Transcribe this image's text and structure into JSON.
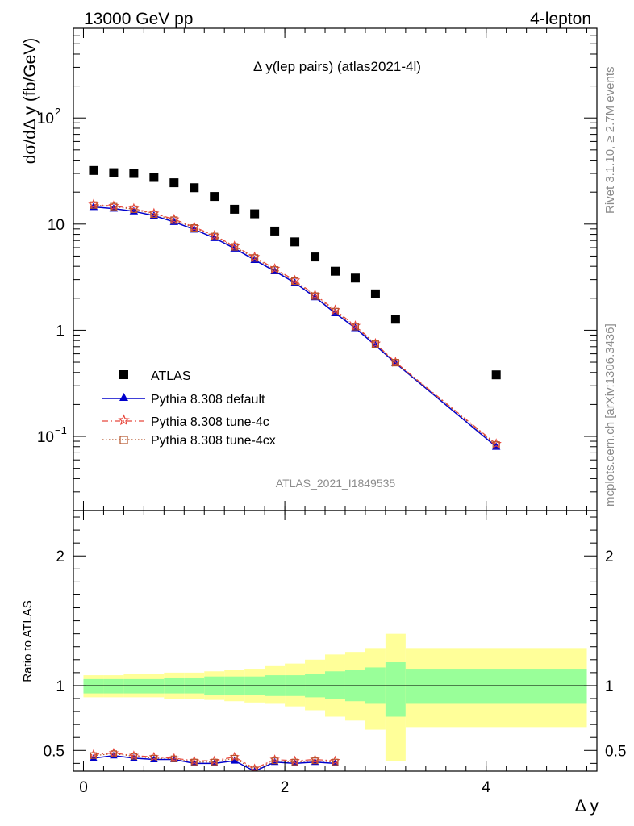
{
  "header": {
    "left": "13000 GeV pp",
    "right": "4-lepton"
  },
  "plot_title": "Δ y(lep pairs) (atlas2021-4l)",
  "ylabel_main": "dσ/dΔ y (fb/GeV)",
  "ylabel_ratio": "Ratio to ATLAS",
  "xlabel": "Δ y",
  "watermark": "ATLAS_2021_I1849535",
  "side_text_top": "Rivet 3.1.10, ≥ 2.7M events",
  "side_text_bottom": "mcplots.cern.ch [arXiv:1306.3436]",
  "colors": {
    "atlas": "#000000",
    "default": "#0000cc",
    "tune4c": "#e8473c",
    "tune4cx": "#b5532a",
    "band_inner": "#99ff99",
    "band_outer": "#ffff99"
  },
  "chart_data": [
    {
      "type": "scatter",
      "panel": "main",
      "yscale": "log",
      "xlim": [
        -0.1,
        5.1
      ],
      "ylim": [
        0.02,
        700
      ],
      "y_ticks": [
        {
          "value": 0.1,
          "mant": "10",
          "exp": "−1"
        },
        {
          "value": 1,
          "mant": "1",
          "exp": ""
        },
        {
          "value": 10,
          "mant": "10",
          "exp": ""
        },
        {
          "value": 100,
          "mant": "10",
          "exp": "2"
        }
      ],
      "x_ticks": [
        {
          "value": 0,
          "label": "0"
        },
        {
          "value": 2,
          "label": "2"
        },
        {
          "value": 4,
          "label": "4"
        }
      ],
      "legend_position": "bottom-left",
      "series": [
        {
          "name": "ATLAS",
          "key": "atlas",
          "marker": "square",
          "x": [
            0.1,
            0.3,
            0.5,
            0.7,
            0.9,
            1.1,
            1.3,
            1.5,
            1.7,
            1.9,
            2.1,
            2.3,
            2.5,
            2.7,
            2.9,
            3.1,
            4.1
          ],
          "y": [
            32,
            30.5,
            30,
            27.5,
            24.5,
            22,
            18.2,
            13.8,
            12.5,
            8.6,
            6.8,
            4.9,
            3.6,
            3.1,
            2.2,
            1.27,
            0.38
          ]
        },
        {
          "name": "Pythia 8.308 default",
          "key": "default",
          "marker": "triangle",
          "line": "solid",
          "x": [
            0.1,
            0.3,
            0.5,
            0.7,
            0.9,
            1.1,
            1.3,
            1.5,
            1.7,
            1.9,
            2.1,
            2.3,
            2.5,
            2.7,
            2.9,
            3.1,
            4.1
          ],
          "y": [
            14.5,
            14.0,
            13.2,
            12.0,
            10.5,
            8.9,
            7.4,
            5.9,
            4.6,
            3.6,
            2.8,
            2.05,
            1.45,
            1.05,
            0.72,
            0.49,
            0.08
          ]
        },
        {
          "name": "Pythia 8.308 tune-4c",
          "key": "tune4c",
          "marker": "star",
          "line": "dashdot",
          "x": [
            0.1,
            0.3,
            0.5,
            0.7,
            0.9,
            1.1,
            1.3,
            1.5,
            1.7,
            1.9,
            2.1,
            2.3,
            2.5,
            2.7,
            2.9,
            3.1,
            4.1
          ],
          "y": [
            15.3,
            14.8,
            14.0,
            12.6,
            11.1,
            9.4,
            7.8,
            6.2,
            4.9,
            3.8,
            2.95,
            2.15,
            1.55,
            1.1,
            0.75,
            0.5,
            0.085
          ]
        },
        {
          "name": "Pythia 8.308 tune-4cx",
          "key": "tune4cx",
          "marker": "opensquare",
          "line": "dotted",
          "x": [
            0.1,
            0.3,
            0.5,
            0.7,
            0.9,
            1.1,
            1.3,
            1.5,
            1.7,
            1.9,
            2.1,
            2.3,
            2.5,
            2.7,
            2.9,
            3.1,
            4.1
          ],
          "y": [
            15.1,
            14.6,
            13.8,
            12.4,
            10.9,
            9.2,
            7.65,
            6.1,
            4.8,
            3.7,
            2.9,
            2.1,
            1.5,
            1.08,
            0.74,
            0.495,
            0.083
          ]
        }
      ]
    },
    {
      "type": "line",
      "panel": "ratio",
      "ylim": [
        0.34,
        2.35
      ],
      "xlim": [
        -0.1,
        5.1
      ],
      "y_ticks": [
        {
          "value": 0.5,
          "label": "0.5"
        },
        {
          "value": 1,
          "label": "1"
        },
        {
          "value": 2,
          "label": "2"
        }
      ],
      "x_ticks": [
        {
          "value": 0,
          "label": "0"
        },
        {
          "value": 2,
          "label": "2"
        },
        {
          "value": 4,
          "label": "4"
        }
      ],
      "bands": [
        {
          "x0": 0.0,
          "x1": 0.2,
          "inner": [
            0.94,
            1.05
          ],
          "outer": [
            0.91,
            1.08
          ]
        },
        {
          "x0": 0.2,
          "x1": 0.4,
          "inner": [
            0.94,
            1.05
          ],
          "outer": [
            0.91,
            1.08
          ]
        },
        {
          "x0": 0.4,
          "x1": 0.6,
          "inner": [
            0.94,
            1.05
          ],
          "outer": [
            0.91,
            1.09
          ]
        },
        {
          "x0": 0.6,
          "x1": 0.8,
          "inner": [
            0.94,
            1.05
          ],
          "outer": [
            0.91,
            1.09
          ]
        },
        {
          "x0": 0.8,
          "x1": 1.0,
          "inner": [
            0.94,
            1.06
          ],
          "outer": [
            0.9,
            1.1
          ]
        },
        {
          "x0": 1.0,
          "x1": 1.2,
          "inner": [
            0.94,
            1.06
          ],
          "outer": [
            0.9,
            1.1
          ]
        },
        {
          "x0": 1.2,
          "x1": 1.4,
          "inner": [
            0.93,
            1.07
          ],
          "outer": [
            0.89,
            1.11
          ]
        },
        {
          "x0": 1.4,
          "x1": 1.6,
          "inner": [
            0.93,
            1.07
          ],
          "outer": [
            0.88,
            1.12
          ]
        },
        {
          "x0": 1.6,
          "x1": 1.8,
          "inner": [
            0.93,
            1.07
          ],
          "outer": [
            0.87,
            1.13
          ]
        },
        {
          "x0": 1.8,
          "x1": 2.0,
          "inner": [
            0.92,
            1.08
          ],
          "outer": [
            0.86,
            1.15
          ]
        },
        {
          "x0": 2.0,
          "x1": 2.2,
          "inner": [
            0.92,
            1.08
          ],
          "outer": [
            0.84,
            1.17
          ]
        },
        {
          "x0": 2.2,
          "x1": 2.4,
          "inner": [
            0.91,
            1.09
          ],
          "outer": [
            0.81,
            1.2
          ]
        },
        {
          "x0": 2.4,
          "x1": 2.6,
          "inner": [
            0.9,
            1.11
          ],
          "outer": [
            0.76,
            1.24
          ]
        },
        {
          "x0": 2.6,
          "x1": 2.8,
          "inner": [
            0.88,
            1.12
          ],
          "outer": [
            0.73,
            1.26
          ]
        },
        {
          "x0": 2.8,
          "x1": 3.0,
          "inner": [
            0.86,
            1.14
          ],
          "outer": [
            0.66,
            1.29
          ]
        },
        {
          "x0": 3.0,
          "x1": 3.2,
          "inner": [
            0.76,
            1.18
          ],
          "outer": [
            0.42,
            1.4
          ]
        },
        {
          "x0": 3.2,
          "x1": 5.0,
          "inner": [
            0.86,
            1.13
          ],
          "outer": [
            0.68,
            1.29
          ]
        }
      ],
      "reference_line": 1,
      "series": [
        {
          "name": "Pythia 8.308 default",
          "key": "default",
          "x": [
            0.1,
            0.3,
            0.5,
            0.7,
            0.9,
            1.1,
            1.3,
            1.5,
            1.7,
            1.9,
            2.1,
            2.3,
            2.5
          ],
          "y": [
            0.44,
            0.46,
            0.44,
            0.43,
            0.43,
            0.4,
            0.4,
            0.42,
            0.34,
            0.41,
            0.4,
            0.41,
            0.4
          ]
        },
        {
          "name": "Pythia 8.308 tune-4c",
          "key": "tune4c",
          "x": [
            0.1,
            0.3,
            0.5,
            0.7,
            0.9,
            1.1,
            1.3,
            1.5,
            1.7,
            1.9,
            2.1,
            2.3,
            2.5
          ],
          "y": [
            0.47,
            0.48,
            0.46,
            0.45,
            0.44,
            0.42,
            0.42,
            0.45,
            0.36,
            0.43,
            0.42,
            0.43,
            0.42
          ]
        },
        {
          "name": "Pythia 8.308 tune-4cx",
          "key": "tune4cx",
          "x": [
            0.1,
            0.3,
            0.5,
            0.7,
            0.9,
            1.1,
            1.3,
            1.5,
            1.7,
            1.9,
            2.1,
            2.3,
            2.5
          ],
          "y": [
            0.46,
            0.475,
            0.455,
            0.44,
            0.435,
            0.41,
            0.41,
            0.44,
            0.35,
            0.42,
            0.41,
            0.42,
            0.41
          ]
        }
      ]
    }
  ]
}
